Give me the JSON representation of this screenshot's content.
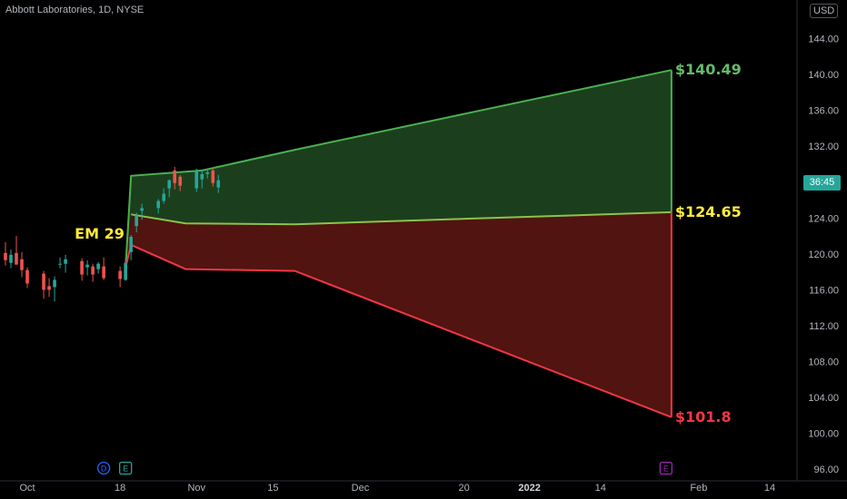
{
  "header": {
    "title": "Abbott Laboratories, 1D, NYSE",
    "currency": "USD"
  },
  "price_tag": "36:45",
  "annotations": {
    "em_label": "EM 29",
    "upper_label": "$140.49",
    "mid_label": "$124.65",
    "lower_label": "$101.8"
  },
  "colors": {
    "background": "#000000",
    "up_candle": "#26a69a",
    "down_candle": "#ef5350",
    "upper_band_line": "#4caf50",
    "upper_band_fill": "#1e4620",
    "lower_band_line": "#f23645",
    "lower_band_fill": "#5a1612",
    "label_yellow": "#ffeb3b",
    "label_green": "#66bb6a",
    "label_red": "#f23645"
  },
  "events": [
    {
      "label": "D",
      "date": "2021-10-15",
      "color": "#2962ff"
    },
    {
      "label": "E",
      "date": "2021-10-19",
      "color": "#26a69a"
    },
    {
      "label": "E",
      "date": "2022-01-26",
      "color": "#9c27b0"
    }
  ],
  "chart_data": {
    "type": "candlestick",
    "title": "Abbott Laboratories, 1D, NYSE",
    "y_axis": {
      "ticks": [
        96,
        100,
        104,
        108,
        112,
        116,
        120,
        124,
        128,
        132,
        136,
        140,
        144
      ],
      "tick_labels": [
        "96.00",
        "100.00",
        "104.00",
        "108.00",
        "112.00",
        "116.00",
        "120.00",
        "124.00",
        "128.00",
        "132.00",
        "136.00",
        "140.00",
        "144.00"
      ],
      "range": [
        94.7,
        148.3
      ]
    },
    "x_axis": {
      "range": [
        "2021-09-26",
        "2022-02-19"
      ],
      "ticks": [
        {
          "date": "2021-10-01",
          "label": "Oct",
          "bold": false
        },
        {
          "date": "2021-10-18",
          "label": "18",
          "bold": false
        },
        {
          "date": "2021-11-01",
          "label": "Nov",
          "bold": false
        },
        {
          "date": "2021-11-15",
          "label": "15",
          "bold": false
        },
        {
          "date": "2021-12-01",
          "label": "Dec",
          "bold": false
        },
        {
          "date": "2021-12-20",
          "label": "20",
          "bold": false
        },
        {
          "date": "2022-01-01",
          "label": "2022",
          "bold": true
        },
        {
          "date": "2022-01-14",
          "label": "14",
          "bold": false
        },
        {
          "date": "2022-02-01",
          "label": "Feb",
          "bold": false
        },
        {
          "date": "2022-02-14",
          "label": "14",
          "bold": false
        }
      ]
    },
    "candles": [
      {
        "d": "2021-09-24",
        "o": 122.5,
        "h": 123.7,
        "l": 119.8,
        "c": 120.7
      },
      {
        "d": "2021-09-27",
        "o": 120.1,
        "h": 121.3,
        "l": 118.7,
        "c": 119.3
      },
      {
        "d": "2021-09-28",
        "o": 119.0,
        "h": 120.5,
        "l": 118.4,
        "c": 119.9
      },
      {
        "d": "2021-09-29",
        "o": 120.1,
        "h": 122.0,
        "l": 119.0,
        "c": 118.8
      },
      {
        "d": "2021-09-30",
        "o": 119.4,
        "h": 120.2,
        "l": 117.4,
        "c": 118.2
      },
      {
        "d": "2021-10-01",
        "o": 118.2,
        "h": 118.5,
        "l": 116.2,
        "c": 116.7
      },
      {
        "d": "2021-10-04",
        "o": 117.8,
        "h": 118.1,
        "l": 115.0,
        "c": 116.0
      },
      {
        "d": "2021-10-05",
        "o": 116.4,
        "h": 117.3,
        "l": 115.2,
        "c": 116.0
      },
      {
        "d": "2021-10-06",
        "o": 116.3,
        "h": 117.5,
        "l": 114.7,
        "c": 117.1
      },
      {
        "d": "2021-10-07",
        "o": 118.8,
        "h": 119.6,
        "l": 118.4,
        "c": 118.9
      },
      {
        "d": "2021-10-08",
        "o": 118.9,
        "h": 119.9,
        "l": 117.9,
        "c": 119.4
      },
      {
        "d": "2021-10-11",
        "o": 119.2,
        "h": 119.5,
        "l": 117.0,
        "c": 117.7
      },
      {
        "d": "2021-10-12",
        "o": 118.5,
        "h": 119.3,
        "l": 117.6,
        "c": 118.8
      },
      {
        "d": "2021-10-13",
        "o": 118.6,
        "h": 118.9,
        "l": 116.9,
        "c": 117.7
      },
      {
        "d": "2021-10-14",
        "o": 118.3,
        "h": 119.1,
        "l": 117.8,
        "c": 118.9
      },
      {
        "d": "2021-10-15",
        "o": 118.6,
        "h": 119.6,
        "l": 117.1,
        "c": 117.3
      },
      {
        "d": "2021-10-18",
        "o": 118.1,
        "h": 118.6,
        "l": 116.3,
        "c": 117.2
      },
      {
        "d": "2021-10-19",
        "o": 117.1,
        "h": 119.6,
        "l": 117.0,
        "c": 119.0
      },
      {
        "d": "2021-10-20",
        "o": 120.2,
        "h": 122.1,
        "l": 119.3,
        "c": 121.9
      },
      {
        "d": "2021-10-21",
        "o": 123.1,
        "h": 124.6,
        "l": 122.4,
        "c": 124.3
      },
      {
        "d": "2021-10-22",
        "o": 124.8,
        "h": 125.6,
        "l": 123.8,
        "c": 125.1
      },
      {
        "d": "2021-10-25",
        "o": 125.1,
        "h": 126.1,
        "l": 124.5,
        "c": 125.9
      },
      {
        "d": "2021-10-26",
        "o": 125.9,
        "h": 127.3,
        "l": 125.6,
        "c": 126.7
      },
      {
        "d": "2021-10-27",
        "o": 127.3,
        "h": 128.3,
        "l": 126.3,
        "c": 128.2
      },
      {
        "d": "2021-10-28",
        "o": 129.3,
        "h": 129.7,
        "l": 127.2,
        "c": 127.9
      },
      {
        "d": "2021-10-29",
        "o": 128.6,
        "h": 128.8,
        "l": 127.0,
        "c": 127.6
      },
      {
        "d": "2021-11-01",
        "o": 127.3,
        "h": 129.5,
        "l": 126.9,
        "c": 129.2
      },
      {
        "d": "2021-11-02",
        "o": 128.3,
        "h": 129.4,
        "l": 127.3,
        "c": 128.9
      },
      {
        "d": "2021-11-03",
        "o": 128.9,
        "h": 129.5,
        "l": 128.4,
        "c": 129.1
      },
      {
        "d": "2021-11-04",
        "o": 129.3,
        "h": 129.6,
        "l": 127.5,
        "c": 127.9
      },
      {
        "d": "2021-11-05",
        "o": 127.4,
        "h": 128.8,
        "l": 126.8,
        "c": 128.2
      }
    ],
    "expected_move": {
      "label": "EM 29",
      "upper": [
        {
          "d": "2021-10-19",
          "v": 118.5
        },
        {
          "d": "2021-10-20",
          "v": 128.7
        },
        {
          "d": "2021-11-02",
          "v": 129.3
        },
        {
          "d": "2021-11-19",
          "v": 131.6
        },
        {
          "d": "2022-01-27",
          "v": 140.49
        }
      ],
      "mid": [
        {
          "d": "2021-10-20",
          "v": 124.4
        },
        {
          "d": "2021-10-30",
          "v": 123.4
        },
        {
          "d": "2021-11-19",
          "v": 123.3
        },
        {
          "d": "2022-01-27",
          "v": 124.65
        }
      ],
      "lower": [
        {
          "d": "2021-10-19",
          "v": 118.5
        },
        {
          "d": "2021-10-20",
          "v": 121.0
        },
        {
          "d": "2021-10-30",
          "v": 118.3
        },
        {
          "d": "2021-11-19",
          "v": 118.1
        },
        {
          "d": "2022-01-27",
          "v": 101.8
        }
      ],
      "upper_target": 140.49,
      "mid_target": 124.65,
      "lower_target": 101.8
    }
  }
}
